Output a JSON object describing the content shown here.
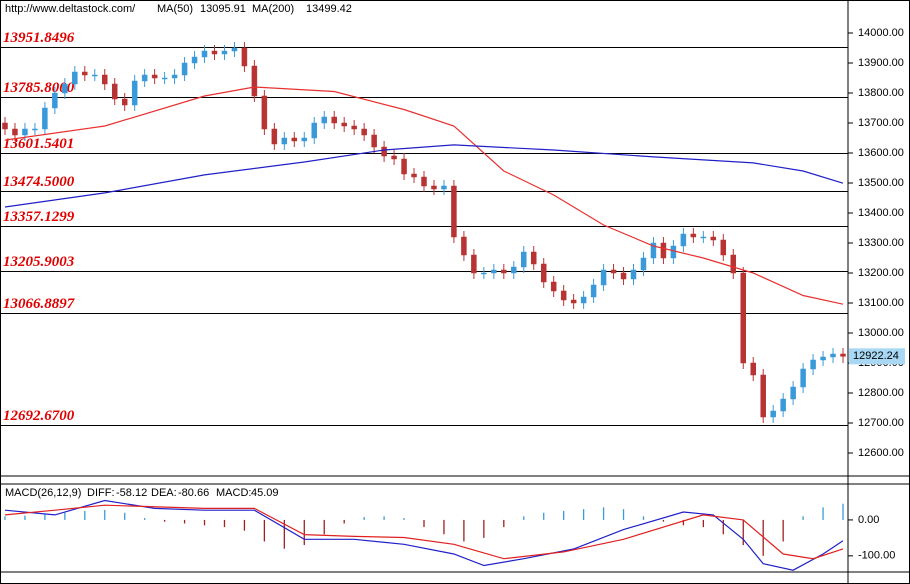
{
  "header": {
    "url": "http://www.deltastock.com/"
  },
  "chart_data": [
    {
      "type": "candlestick",
      "up_color": "#3a9ad9",
      "down_color": "#b83333",
      "ylim": [
        12530,
        14100
      ],
      "yticks": [
        {
          "value": 14000,
          "label": "14000.00"
        },
        {
          "value": 13900,
          "label": "13900.00"
        },
        {
          "value": 13800,
          "label": "13800.00"
        },
        {
          "value": 13700,
          "label": "13700.00"
        },
        {
          "value": 13600,
          "label": "13600.00"
        },
        {
          "value": 13500,
          "label": "13500.00"
        },
        {
          "value": 13400,
          "label": "13400.00"
        },
        {
          "value": 13300,
          "label": "13300.00"
        },
        {
          "value": 13200,
          "label": "13200.00"
        },
        {
          "value": 13100,
          "label": "13100.00"
        },
        {
          "value": 13000,
          "label": "13000.00"
        },
        {
          "value": 12900,
          "label": "12900.00"
        },
        {
          "value": 12800,
          "label": "12800.00"
        },
        {
          "value": 12700,
          "label": "12700.00"
        },
        {
          "value": 12600,
          "label": "12600.00"
        }
      ],
      "levels": [
        13951.8496,
        {
          "value": 13785.8,
          "label": "13785.8000"
        },
        13601.5401,
        {
          "value": 13474.5,
          "label": "13474.5000"
        },
        13357.1299,
        13205.9003,
        13066.8897,
        {
          "value": 12692.67,
          "label": "12692.6700"
        }
      ],
      "open": [
        13700,
        13680,
        13660,
        13680,
        13680,
        13750,
        13800,
        13830,
        13870,
        13860,
        13860,
        13830,
        13780,
        13760,
        13840,
        13860,
        13850,
        13850,
        13860,
        13900,
        13920,
        13940,
        13930,
        13940,
        13950,
        13890,
        13790,
        13680,
        13630,
        13650,
        13640,
        13650,
        13700,
        13720,
        13700,
        13690,
        13680,
        13660,
        13620,
        13590,
        13580,
        13530,
        13520,
        13490,
        13480,
        13490,
        13320,
        13260,
        13200,
        13200,
        13210,
        13200,
        13220,
        13270,
        13230,
        13170,
        13140,
        13110,
        13100,
        13120,
        13160,
        13210,
        13200,
        13180,
        13210,
        13250,
        13300,
        13250,
        13290,
        13330,
        13320,
        13320,
        13310,
        13260,
        13200,
        12900,
        12860,
        12720,
        12740,
        12780,
        12820,
        12880,
        12910,
        12920,
        12930
      ],
      "high": [
        13720,
        13700,
        13700,
        13700,
        13770,
        13820,
        13850,
        13890,
        13890,
        13880,
        13880,
        13850,
        13800,
        13860,
        13880,
        13880,
        13870,
        13880,
        13920,
        13940,
        13960,
        13960,
        13960,
        13970,
        13970,
        13910,
        13810,
        13700,
        13670,
        13670,
        13670,
        13720,
        13740,
        13740,
        13720,
        13710,
        13700,
        13680,
        13640,
        13610,
        13600,
        13550,
        13540,
        13510,
        13510,
        13510,
        13340,
        13280,
        13220,
        13230,
        13230,
        13240,
        13290,
        13290,
        13250,
        13190,
        13160,
        13130,
        13140,
        13180,
        13230,
        13230,
        13220,
        13230,
        13270,
        13320,
        13320,
        13310,
        13350,
        13350,
        13340,
        13340,
        13330,
        13280,
        13220,
        12920,
        12880,
        12760,
        12800,
        12840,
        12900,
        12930,
        12940,
        12950,
        12950
      ],
      "low": [
        13660,
        13640,
        13640,
        13660,
        13660,
        13730,
        13780,
        13810,
        13840,
        13840,
        13810,
        13760,
        13740,
        13740,
        13820,
        13830,
        13830,
        13830,
        13840,
        13880,
        13900,
        13910,
        13910,
        13920,
        13870,
        13770,
        13660,
        13610,
        13610,
        13620,
        13620,
        13630,
        13680,
        13680,
        13670,
        13660,
        13640,
        13600,
        13570,
        13560,
        13510,
        13500,
        13470,
        13460,
        13460,
        13300,
        13240,
        13180,
        13180,
        13180,
        13180,
        13180,
        13200,
        13210,
        13150,
        13120,
        13090,
        13080,
        13080,
        13100,
        13140,
        13180,
        13160,
        13160,
        13190,
        13230,
        13230,
        13230,
        13270,
        13300,
        13300,
        13290,
        13240,
        13180,
        12880,
        12840,
        12700,
        12700,
        12720,
        12760,
        12800,
        12860,
        12890,
        12900,
        12900
      ],
      "close": [
        13680,
        13660,
        13680,
        13680,
        13750,
        13800,
        13830,
        13870,
        13860,
        13860,
        13830,
        13780,
        13760,
        13840,
        13860,
        13850,
        13850,
        13860,
        13900,
        13920,
        13940,
        13930,
        13940,
        13950,
        13890,
        13790,
        13680,
        13630,
        13650,
        13640,
        13650,
        13700,
        13720,
        13700,
        13690,
        13680,
        13660,
        13620,
        13590,
        13580,
        13530,
        13520,
        13490,
        13480,
        13490,
        13320,
        13260,
        13200,
        13200,
        13210,
        13200,
        13220,
        13270,
        13230,
        13170,
        13140,
        13110,
        13100,
        13120,
        13160,
        13210,
        13200,
        13180,
        13210,
        13250,
        13300,
        13250,
        13290,
        13330,
        13320,
        13320,
        13310,
        13260,
        13200,
        12900,
        12860,
        12720,
        12740,
        12780,
        12820,
        12880,
        12910,
        12920,
        12930,
        12922.24
      ],
      "series": [
        {
          "name": "MA(50)",
          "color": "#e83030",
          "x": [
            0,
            10,
            20,
            25,
            33,
            40,
            45,
            50,
            55,
            60,
            65,
            70,
            75,
            80,
            84
          ],
          "values": [
            13643,
            13690,
            13790,
            13820,
            13805,
            13745,
            13690,
            13540,
            13460,
            13360,
            13290,
            13250,
            13200,
            13125,
            13095.91
          ]
        },
        {
          "name": "MA(200)",
          "color": "#2020c8",
          "x": [
            0,
            10,
            20,
            30,
            38,
            45,
            55,
            65,
            75,
            80,
            84
          ],
          "values": [
            13420,
            13467,
            13527,
            13570,
            13610,
            13627,
            13610,
            13587,
            13567,
            13540,
            13499.42
          ]
        }
      ]
    },
    {
      "type": "macd",
      "title": "MACD(26,12,9)",
      "ylim": [
        -145,
        100
      ],
      "yticks": [
        {
          "value": 0,
          "label": "0.00"
        },
        {
          "value": -100,
          "label": "-100.00"
        }
      ],
      "series": [
        {
          "name": "DIFF:",
          "color": "#2020c8",
          "x": [
            0,
            5,
            10,
            15,
            20,
            25,
            30,
            35,
            40,
            45,
            48,
            52,
            57,
            62,
            68,
            71,
            74,
            76,
            79,
            82,
            84
          ],
          "values": [
            27,
            14,
            54,
            32,
            27,
            27,
            -54,
            -54,
            -68,
            -95,
            -127,
            -108,
            -81,
            -27,
            22,
            14,
            -54,
            -122,
            -140,
            -95,
            -58.12
          ]
        },
        {
          "name": "DEA:",
          "color": "#e02020",
          "x": [
            0,
            5,
            10,
            20,
            25,
            30,
            35,
            40,
            45,
            50,
            56,
            62,
            70,
            74,
            78,
            81,
            84
          ],
          "values": [
            14,
            27,
            41,
            32,
            32,
            -41,
            -46,
            -49,
            -68,
            -108,
            -89,
            -54,
            14,
            0,
            -95,
            -108,
            -80.66
          ]
        }
      ],
      "histogram": {
        "name": "MACD:",
        "up_color": "#3a9ad9",
        "down_color": "#a02020",
        "x": [
          0,
          2,
          4,
          6,
          8,
          10,
          12,
          14,
          16,
          18,
          20,
          22,
          24,
          26,
          28,
          30,
          32,
          34,
          36,
          38,
          40,
          42,
          44,
          46,
          48,
          50,
          52,
          54,
          56,
          58,
          60,
          62,
          64,
          66,
          68,
          70,
          72,
          74,
          76,
          78,
          80,
          82,
          84
        ],
        "values": [
          10,
          12,
          15,
          20,
          25,
          28,
          20,
          5,
          -5,
          -10,
          -15,
          -20,
          -30,
          -60,
          -80,
          -70,
          -40,
          -10,
          8,
          10,
          5,
          -20,
          -40,
          -60,
          -50,
          -20,
          10,
          20,
          25,
          30,
          35,
          30,
          10,
          -5,
          -15,
          -20,
          -40,
          -70,
          -100,
          -60,
          10,
          35,
          45.09
        ]
      }
    }
  ]
}
